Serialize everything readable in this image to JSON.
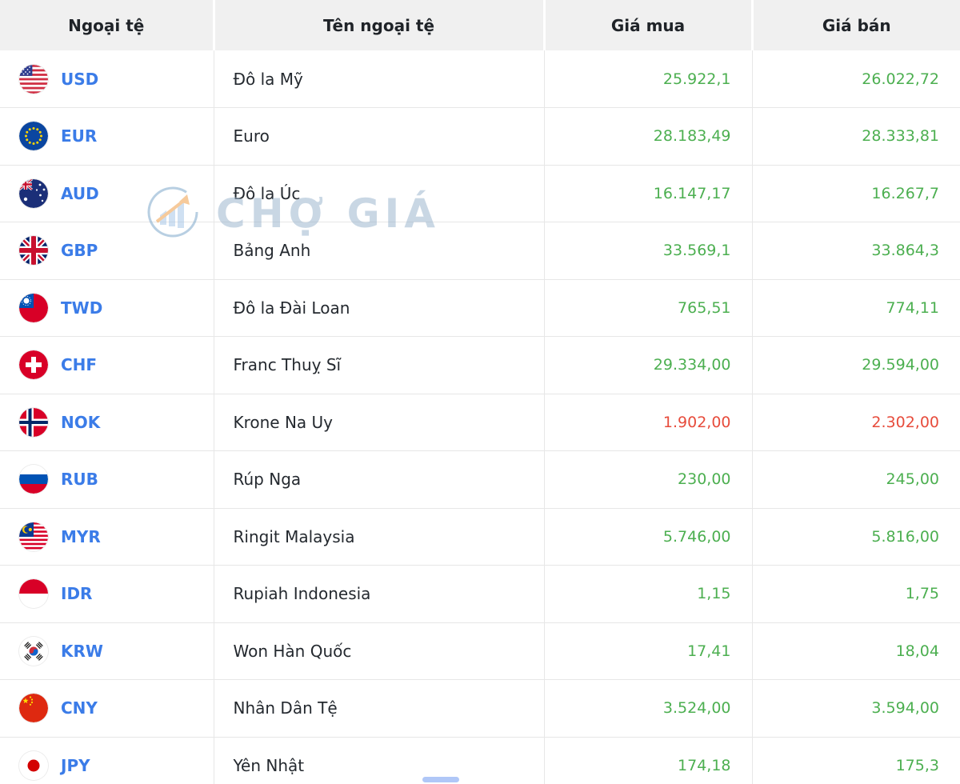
{
  "chart_data": {
    "type": "table",
    "title": "",
    "columns": [
      "Ngoại tệ",
      "Tên ngoại tệ",
      "Giá mua",
      "Giá bán"
    ],
    "rows": [
      {
        "code": "USD",
        "name": "Đô la Mỹ",
        "buy": "25.922,1",
        "sell": "26.022,72",
        "trend": "up"
      },
      {
        "code": "EUR",
        "name": "Euro",
        "buy": "28.183,49",
        "sell": "28.333,81",
        "trend": "up"
      },
      {
        "code": "AUD",
        "name": "Đô la Úc",
        "buy": "16.147,17",
        "sell": "16.267,7",
        "trend": "up"
      },
      {
        "code": "GBP",
        "name": "Bảng Anh",
        "buy": "33.569,1",
        "sell": "33.864,3",
        "trend": "up"
      },
      {
        "code": "TWD",
        "name": "Đô la Đài Loan",
        "buy": "765,51",
        "sell": "774,11",
        "trend": "up"
      },
      {
        "code": "CHF",
        "name": "Franc Thuỵ Sĩ",
        "buy": "29.334,00",
        "sell": "29.594,00",
        "trend": "up"
      },
      {
        "code": "NOK",
        "name": "Krone Na Uy",
        "buy": "1.902,00",
        "sell": "2.302,00",
        "trend": "down"
      },
      {
        "code": "RUB",
        "name": "Rúp Nga",
        "buy": "230,00",
        "sell": "245,00",
        "trend": "up"
      },
      {
        "code": "MYR",
        "name": "Ringit Malaysia",
        "buy": "5.746,00",
        "sell": "5.816,00",
        "trend": "up"
      },
      {
        "code": "IDR",
        "name": "Rupiah Indonesia",
        "buy": "1,15",
        "sell": "1,75",
        "trend": "up"
      },
      {
        "code": "KRW",
        "name": "Won Hàn Quốc",
        "buy": "17,41",
        "sell": "18,04",
        "trend": "up"
      },
      {
        "code": "CNY",
        "name": "Nhân Dân Tệ",
        "buy": "3.524,00",
        "sell": "3.594,00",
        "trend": "up"
      },
      {
        "code": "JPY",
        "name": "Yên Nhật",
        "buy": "174,18",
        "sell": "175,3",
        "trend": "up"
      }
    ]
  },
  "watermark": {
    "text": "CHỢ GIÁ"
  },
  "colors": {
    "positive": "#4caf50",
    "negative": "#e74c3c",
    "code_blue": "#3b7ce8",
    "header_bg": "#f0f0f0"
  }
}
